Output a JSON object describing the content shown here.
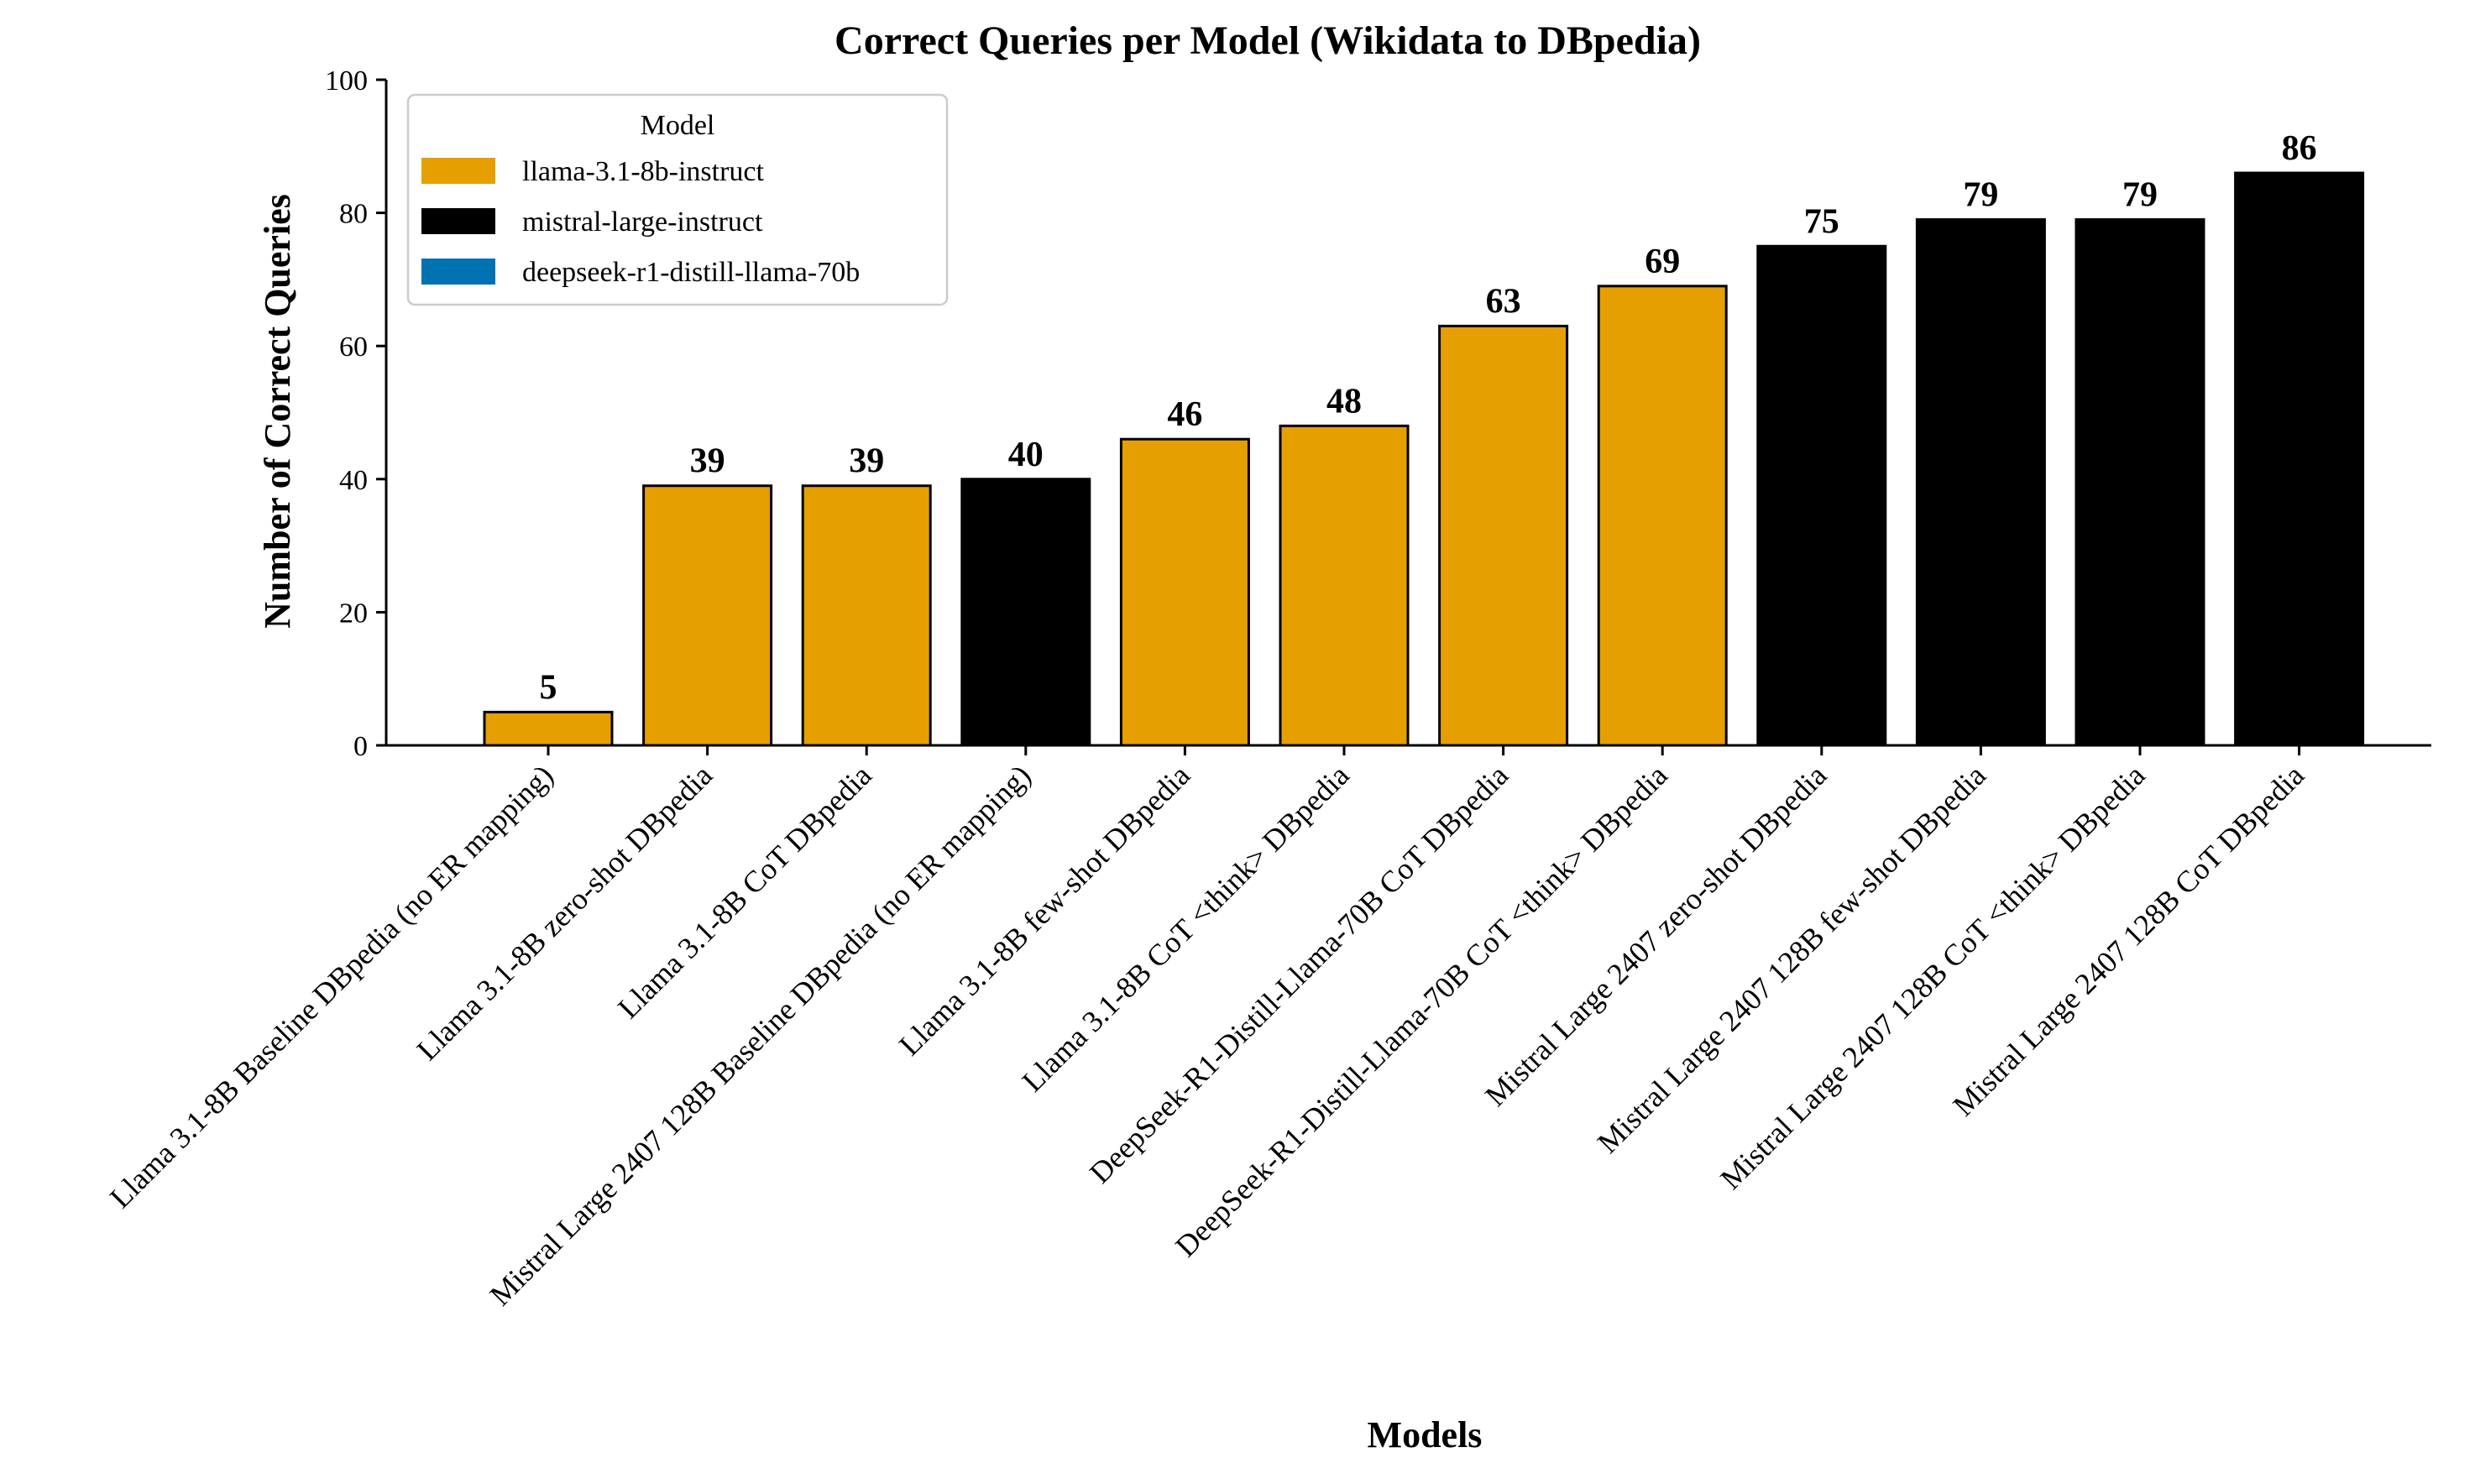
{
  "chart_data": {
    "type": "bar",
    "title": "Correct Queries per Model (Wikidata to DBpedia)",
    "xlabel": "Models",
    "ylabel": "Number of Correct Queries",
    "ylim": [
      0,
      100
    ],
    "yticks": [
      0,
      20,
      40,
      60,
      80,
      100
    ],
    "grid": false,
    "legend": {
      "title": "Model",
      "placement": "top-left",
      "entries": [
        {
          "name": "llama-3.1-8b-instruct",
          "color": "#E69F00"
        },
        {
          "name": "mistral-large-instruct",
          "color": "#000000"
        },
        {
          "name": "deepseek-r1-distill-llama-70b",
          "color": "#0072B2"
        }
      ]
    },
    "categories": [
      "Llama 3.1-8B Baseline DBpedia (no ER mapping)",
      "Llama 3.1-8B zero-shot DBpedia",
      "Llama 3.1-8B CoT DBpedia",
      "Mistral Large 2407 128B Baseline DBpedia (no ER mapping)",
      "Llama 3.1-8B few-shot DBpedia",
      "Llama 3.1-8B CoT <think> DBpedia",
      "DeepSeek-R1-Distill-Llama-70B CoT DBpedia",
      "DeepSeek-R1-Distill-Llama-70B CoT <think> DBpedia",
      "Mistral Large 2407 zero-shot DBpedia",
      "Mistral Large 2407 128B few-shot DBpedia",
      "Mistral Large 2407 128B CoT <think> DBpedia",
      "Mistral Large 2407 128B CoT DBpedia"
    ],
    "values": [
      5,
      39,
      39,
      40,
      46,
      48,
      63,
      69,
      75,
      79,
      79,
      86
    ],
    "bar_colors": [
      "#E69F00",
      "#E69F00",
      "#E69F00",
      "#000000",
      "#E69F00",
      "#E69F00",
      "#E69F00",
      "#E69F00",
      "#000000",
      "#000000",
      "#000000",
      "#000000"
    ]
  }
}
